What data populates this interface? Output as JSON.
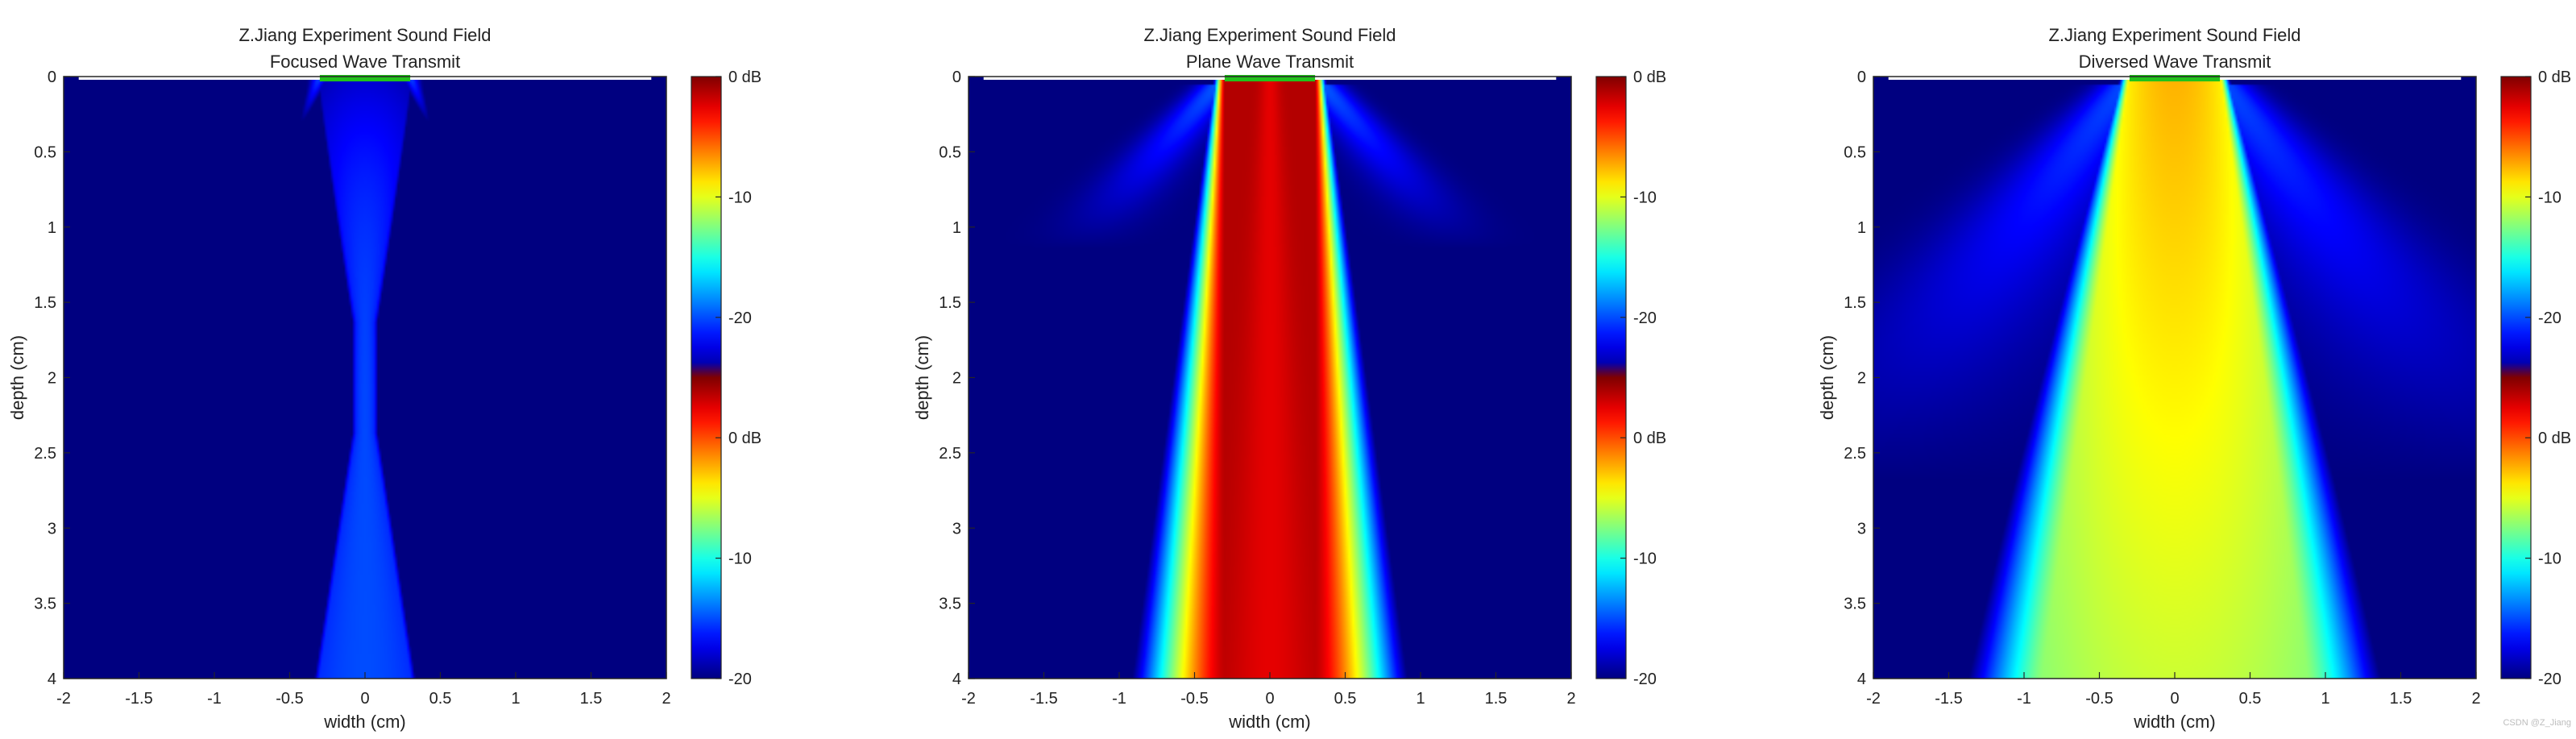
{
  "watermark": "CSDN @Z_Jiang",
  "chart_data": [
    {
      "type": "heatmap",
      "title": "Z.Jiang Experiment Sound Field",
      "subtitle": "Focused Wave Transmit",
      "xlabel": "width (cm)",
      "ylabel": "depth (cm)",
      "xlim": [
        -2,
        2
      ],
      "ylim": [
        0,
        4
      ],
      "y_reversed": true,
      "xticks": [
        "-2",
        "-1.5",
        "-1",
        "-0.5",
        "0",
        "0.5",
        "1",
        "1.5",
        "2"
      ],
      "yticks": [
        "0",
        "0.5",
        "1",
        "1.5",
        "2",
        "2.5",
        "3",
        "3.5",
        "4"
      ],
      "field": {
        "mode": "focused",
        "aperture_half_width": 0.3,
        "focus_depth": 2.0,
        "peak_dB": -16
      },
      "colorbar": {
        "ticks": [
          "0 dB",
          "-10",
          "-20",
          "0 dB",
          "-10",
          "-20"
        ],
        "range_dB": [
          -20,
          0
        ]
      }
    },
    {
      "type": "heatmap",
      "title": "Z.Jiang Experiment Sound Field",
      "subtitle": "Plane Wave Transmit",
      "xlabel": "width (cm)",
      "ylabel": "depth (cm)",
      "xlim": [
        -2,
        2
      ],
      "ylim": [
        0,
        4
      ],
      "y_reversed": true,
      "xticks": [
        "-2",
        "-1.5",
        "-1",
        "-0.5",
        "0",
        "0.5",
        "1",
        "1.5",
        "2"
      ],
      "yticks": [
        "0",
        "0.5",
        "1",
        "1.5",
        "2",
        "2.5",
        "3",
        "3.5",
        "4"
      ],
      "field": {
        "mode": "plane",
        "aperture_half_width": 0.3,
        "peak_dB": -1
      },
      "colorbar": {
        "ticks": [
          "0 dB",
          "-10",
          "-20",
          "0 dB",
          "-10",
          "-20"
        ],
        "range_dB": [
          -20,
          0
        ]
      }
    },
    {
      "type": "heatmap",
      "title": "Z.Jiang Experiment Sound Field",
      "subtitle": "Diversed Wave Transmit",
      "xlabel": "width (cm)",
      "ylabel": "depth (cm)",
      "xlim": [
        -2,
        2
      ],
      "ylim": [
        0,
        4
      ],
      "y_reversed": true,
      "xticks": [
        "-2",
        "-1.5",
        "-1",
        "-0.5",
        "0",
        "0.5",
        "1",
        "1.5",
        "2"
      ],
      "yticks": [
        "0",
        "0.5",
        "1",
        "1.5",
        "2",
        "2.5",
        "3",
        "3.5",
        "4"
      ],
      "field": {
        "mode": "diverging",
        "aperture_half_width": 0.3,
        "half_width_at_4cm": 0.88,
        "peak_dB": -6
      },
      "colorbar": {
        "ticks": [
          "0 dB",
          "-10",
          "-20",
          "0 dB",
          "-10",
          "-20"
        ],
        "range_dB": [
          -20,
          0
        ]
      }
    }
  ]
}
